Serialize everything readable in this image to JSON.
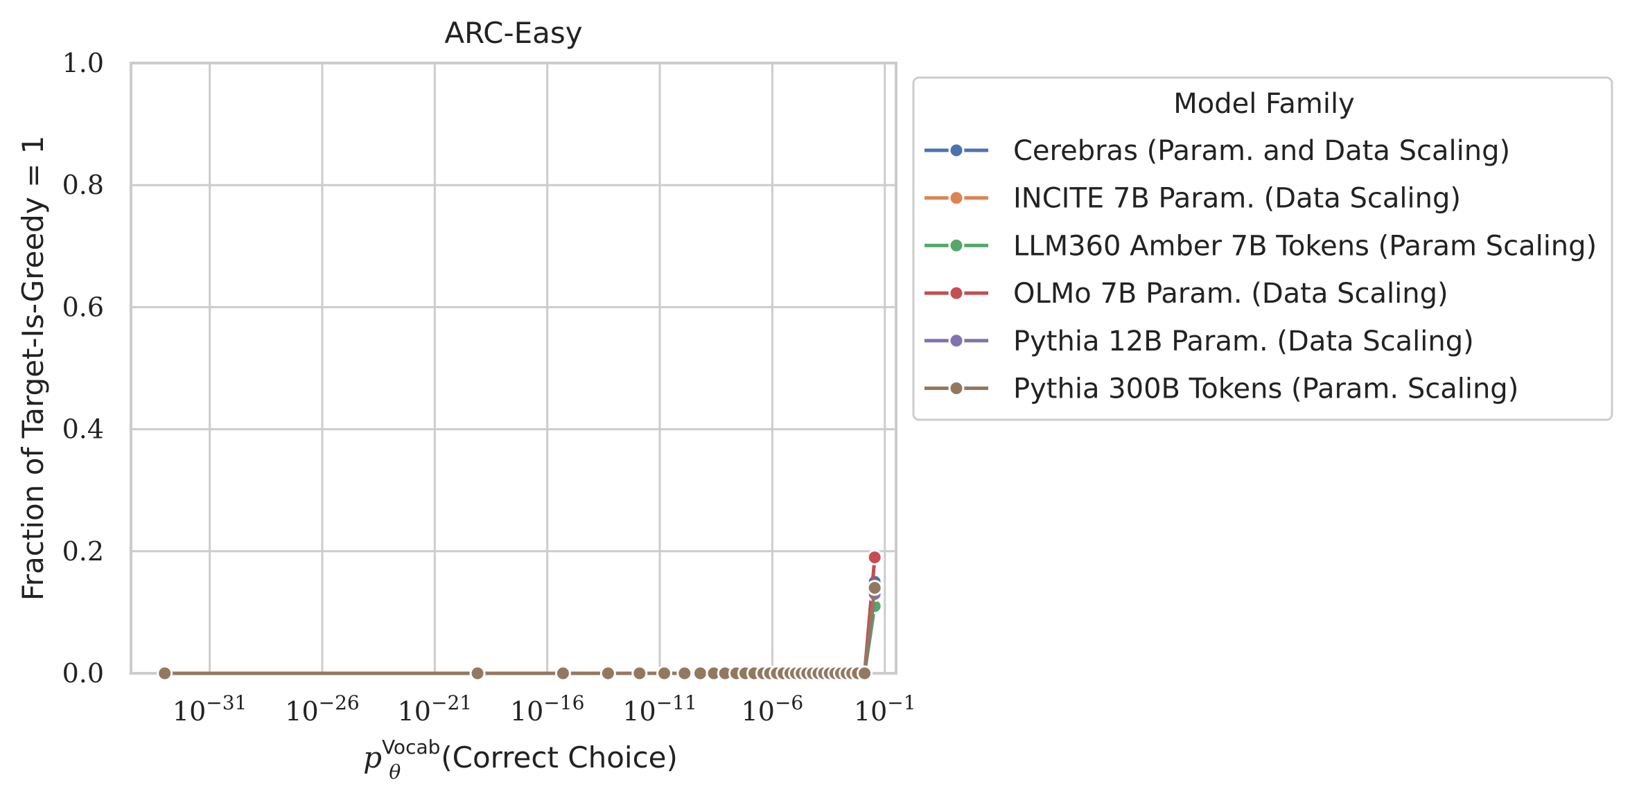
{
  "chart_data": {
    "type": "line",
    "title": "ARC-Easy",
    "xlabel": "(Correct Choice)",
    "xlabel_math": {
      "base": "p",
      "sub": "θ",
      "sup": "Vocab"
    },
    "ylabel": "Fraction of Target-Is-Greedy = 1",
    "xscale": "log",
    "xlim_exp": [
      -34.5,
      -0.5
    ],
    "ylim": [
      0.0,
      1.0
    ],
    "grid": true,
    "x_ticks": [
      {
        "exp": -31,
        "label": "10",
        "sup": "−31"
      },
      {
        "exp": -26,
        "label": "10",
        "sup": "−26"
      },
      {
        "exp": -21,
        "label": "10",
        "sup": "−21"
      },
      {
        "exp": -16,
        "label": "10",
        "sup": "−16"
      },
      {
        "exp": -11,
        "label": "10",
        "sup": "−11"
      },
      {
        "exp": -6,
        "label": "10",
        "sup": "−6"
      },
      {
        "exp": -1,
        "label": "10",
        "sup": "−1"
      }
    ],
    "y_ticks": [
      "0.0",
      "0.2",
      "0.4",
      "0.6",
      "0.8",
      "1.0"
    ],
    "legend": {
      "title": "Model Family",
      "placement": "outside-right"
    },
    "series": [
      {
        "name": "Cerebras (Param. and Data Scaling)",
        "color": "#4c72b0",
        "points": [
          [
            -1.9,
            0.0
          ],
          [
            -1.45,
            0.15
          ]
        ]
      },
      {
        "name": "INCITE 7B Param. (Data Scaling)",
        "color": "#dd8452",
        "points": [
          [
            -1.9,
            0.0
          ],
          [
            -1.45,
            0.13
          ]
        ]
      },
      {
        "name": "LLM360 Amber 7B Tokens (Param Scaling)",
        "color": "#55a868",
        "points": [
          [
            -1.9,
            0.0
          ],
          [
            -1.45,
            0.11
          ]
        ]
      },
      {
        "name": "OLMo 7B Param. (Data Scaling)",
        "color": "#c44e52",
        "points": [
          [
            -1.9,
            0.0
          ],
          [
            -1.45,
            0.19
          ]
        ]
      },
      {
        "name": "Pythia 12B Param. (Data Scaling)",
        "color": "#8172b3",
        "points": [
          [
            -1.9,
            0.0
          ],
          [
            -1.45,
            0.13
          ]
        ]
      },
      {
        "name": "Pythia 300B Tokens (Param. Scaling)",
        "color": "#937860",
        "points": [
          [
            -33.0,
            0.0
          ],
          [
            -19.1,
            0.0
          ],
          [
            -15.3,
            0.0
          ],
          [
            -13.3,
            0.0
          ],
          [
            -11.9,
            0.0
          ],
          [
            -10.8,
            0.0
          ],
          [
            -9.9,
            0.0
          ],
          [
            -9.2,
            0.0
          ],
          [
            -8.6,
            0.0
          ],
          [
            -8.1,
            0.0
          ],
          [
            -7.6,
            0.0
          ],
          [
            -7.2,
            0.0
          ],
          [
            -6.8,
            0.0
          ],
          [
            -6.4,
            0.0
          ],
          [
            -6.1,
            0.0
          ],
          [
            -5.8,
            0.0
          ],
          [
            -5.5,
            0.0
          ],
          [
            -5.2,
            0.0
          ],
          [
            -4.95,
            0.0
          ],
          [
            -4.7,
            0.0
          ],
          [
            -4.45,
            0.0
          ],
          [
            -4.2,
            0.0
          ],
          [
            -3.95,
            0.0
          ],
          [
            -3.7,
            0.0
          ],
          [
            -3.45,
            0.0
          ],
          [
            -3.2,
            0.0
          ],
          [
            -2.95,
            0.0
          ],
          [
            -2.7,
            0.0
          ],
          [
            -2.45,
            0.0
          ],
          [
            -2.2,
            0.0
          ],
          [
            -1.9,
            0.0
          ],
          [
            -1.45,
            0.14
          ]
        ]
      }
    ]
  }
}
